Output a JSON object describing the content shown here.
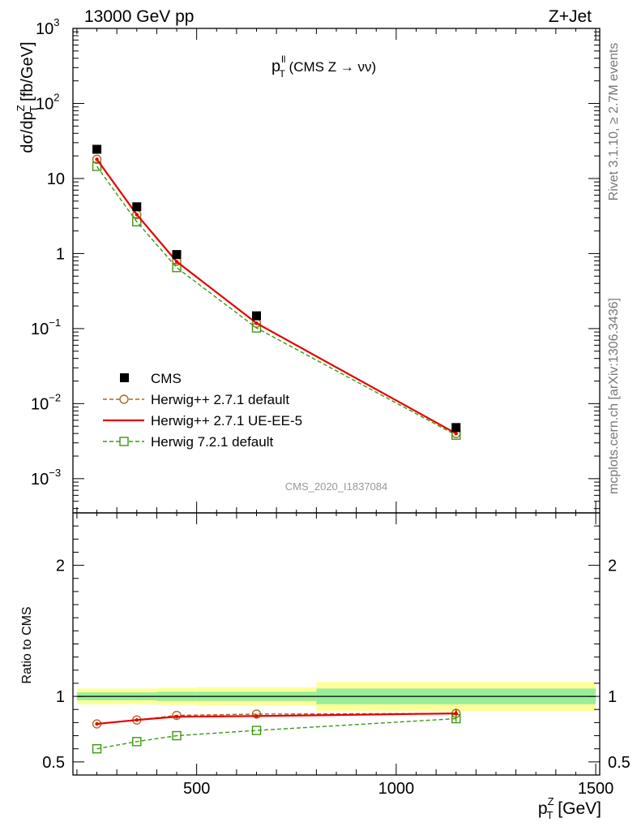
{
  "header": {
    "energy_label": "13000 GeV pp",
    "process_label": "Z+Jet"
  },
  "side": {
    "rivet_label": "Rivet 3.1.10, ≥ 2.7M events",
    "source_label": "mcplots.cern.ch [arXiv:1306.3436]"
  },
  "watermark": "CMS_2020_I1837084",
  "chart_data": [
    {
      "type": "scatter",
      "title": "p_T^ll (CMS Z → νν)",
      "title_main": "p",
      "title_sub": "T",
      "title_sup": "ll",
      "title_rest": " (CMS Z → νν)",
      "ylabel": "dσ/dp_T^Z [fb/GeV]",
      "ylabel_parts": {
        "a": "dσ/dp",
        "sub": "T",
        "sup": "Z",
        "b": " [fb/GeV]"
      },
      "yscale": "log",
      "xlim": [
        190,
        1510
      ],
      "ylim": [
        0.00035,
        1000
      ],
      "yticks": [
        {
          "v": 1000,
          "base": "10",
          "exp": "3"
        },
        {
          "v": 100,
          "base": "10",
          "exp": "2"
        },
        {
          "v": 10,
          "base": "10",
          "exp": ""
        },
        {
          "v": 1,
          "base": "1",
          "exp": ""
        },
        {
          "v": 0.1,
          "base": "10",
          "exp": "−1"
        },
        {
          "v": 0.01,
          "base": "10",
          "exp": "−2"
        },
        {
          "v": 0.001,
          "base": "10",
          "exp": "−3"
        }
      ],
      "legend_position": "bottom-left",
      "series": [
        {
          "name": "CMS",
          "style": "data",
          "color": "#000000",
          "x": [
            250,
            350,
            450,
            650,
            1150
          ],
          "y": [
            24.5,
            4.2,
            0.97,
            0.148,
            0.0048
          ]
        },
        {
          "name": "Herwig++ 2.7.1 default",
          "style": "circle-dashed",
          "color": "#b5651d",
          "x": [
            250,
            350,
            450,
            650,
            1150
          ],
          "y": [
            18.0,
            3.3,
            0.79,
            0.118,
            0.004
          ]
        },
        {
          "name": "Herwig++ 2.7.1 UE-EE-5",
          "style": "solid",
          "color": "#e60000",
          "x": [
            250,
            350,
            450,
            650,
            1150
          ],
          "y": [
            18.0,
            3.3,
            0.78,
            0.118,
            0.004
          ]
        },
        {
          "name": "Herwig 7.2.1 default",
          "style": "square-dashed",
          "color": "#3a9a10",
          "x": [
            250,
            350,
            450,
            650,
            1150
          ],
          "y": [
            14.5,
            2.65,
            0.65,
            0.102,
            0.0038
          ]
        }
      ]
    },
    {
      "type": "line",
      "ylabel": "Ratio to CMS",
      "xlabel": "p_T^Z [GeV]",
      "xlabel_parts": {
        "a": "p",
        "sub": "T",
        "sup": "Z",
        "b": " [GeV]"
      },
      "xlim": [
        190,
        1510
      ],
      "ylim": [
        0.4,
        2.4
      ],
      "xticks": [
        500,
        1000,
        1500
      ],
      "yticks": [
        0.5,
        1,
        2
      ],
      "bins": [
        {
          "lo": 200,
          "hi": 300,
          "inner": 0.03,
          "outer": 0.06
        },
        {
          "lo": 300,
          "hi": 400,
          "inner": 0.03,
          "outer": 0.06
        },
        {
          "lo": 400,
          "hi": 500,
          "inner": 0.035,
          "outer": 0.065
        },
        {
          "lo": 500,
          "hi": 800,
          "inner": 0.035,
          "outer": 0.07
        },
        {
          "lo": 800,
          "hi": 1500,
          "inner": 0.06,
          "outer": 0.11
        }
      ],
      "series": [
        {
          "name": "Herwig++ 2.7.1 default",
          "style": "circle-dashed",
          "color": "#b5651d",
          "x": [
            250,
            350,
            450,
            650,
            1150
          ],
          "y": [
            0.79,
            0.82,
            0.855,
            0.865,
            0.87
          ]
        },
        {
          "name": "Herwig++ 2.7.1 UE-EE-5",
          "style": "solid",
          "color": "#e60000",
          "x": [
            250,
            350,
            450,
            650,
            1150
          ],
          "y": [
            0.79,
            0.82,
            0.845,
            0.85,
            0.87
          ]
        },
        {
          "name": "Herwig 7.2.1 default",
          "style": "square-dashed",
          "color": "#3a9a10",
          "x": [
            250,
            350,
            450,
            650,
            1150
          ],
          "y": [
            0.6,
            0.655,
            0.7,
            0.74,
            0.83
          ]
        }
      ]
    }
  ]
}
